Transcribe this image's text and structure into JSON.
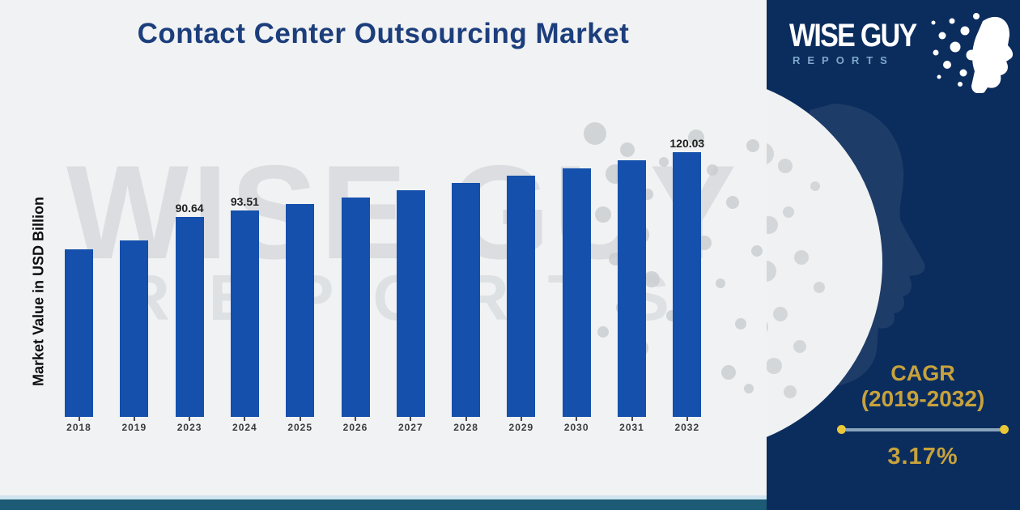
{
  "title": "Contact Center Outsourcing Market",
  "watermark": {
    "line1": "WISE GUY",
    "line2": "REPORTS"
  },
  "logo": {
    "line1": "WISE GUY",
    "line2": "REPORTS"
  },
  "cagr": {
    "label": "CAGR",
    "range": "(2019-2032)",
    "value": "3.17%"
  },
  "colors": {
    "bar": "#1450ac",
    "panel_navy": "#0b2d5e",
    "title_blue": "#1c3e7c",
    "gold": "#c7a23c",
    "dot_yellow": "#e8c838",
    "teal_strip": "#1c5a75",
    "background": "#f1f2f3"
  },
  "chart_data": {
    "type": "bar",
    "title": "Contact Center Outsourcing Market",
    "ylabel": "Market Value in USD Billion",
    "xlabel": "",
    "categories": [
      "2018",
      "2019",
      "2023",
      "2024",
      "2025",
      "2026",
      "2027",
      "2028",
      "2029",
      "2030",
      "2031",
      "2032"
    ],
    "values": [
      75.8,
      80.0,
      90.64,
      93.51,
      96.5,
      99.5,
      102.7,
      105.9,
      109.3,
      112.8,
      116.3,
      120.03
    ],
    "data_labels": [
      "",
      "",
      "90.64",
      "93.51",
      "",
      "",
      "",
      "",
      "",
      "",
      "",
      "120.03"
    ],
    "ylim": [
      0,
      130
    ],
    "grid": false,
    "legend": "none",
    "bar_color": "#1450ac"
  }
}
